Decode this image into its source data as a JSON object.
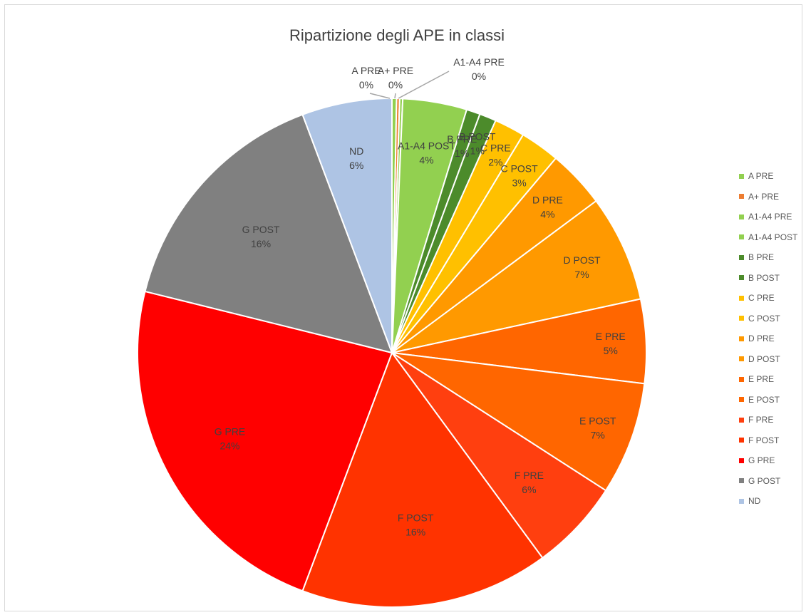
{
  "chart_data": {
    "type": "pie",
    "title": "Ripartizione degli APE in classi",
    "legend_position": "right",
    "slices": [
      {
        "name": "A PRE",
        "value": 0.3,
        "label": "0%",
        "color": "#92d050"
      },
      {
        "name": "A+ PRE",
        "value": 0.2,
        "label": "0%",
        "color": "#ed7d31"
      },
      {
        "name": "A1-A4 PRE",
        "value": 0.2,
        "label": "0%",
        "color": "#92d050"
      },
      {
        "name": "A1-A4 POST",
        "value": 4.2,
        "label": "4%",
        "color": "#92d050"
      },
      {
        "name": "B PRE",
        "value": 0.9,
        "label": "1%",
        "color": "#4c8b2b"
      },
      {
        "name": "B POST",
        "value": 1.1,
        "label": "1%",
        "color": "#4c8b2b"
      },
      {
        "name": "C PRE",
        "value": 2.0,
        "label": "2%",
        "color": "#ffc000"
      },
      {
        "name": "C POST",
        "value": 2.6,
        "label": "3%",
        "color": "#ffc000"
      },
      {
        "name": "D PRE",
        "value": 3.8,
        "label": "4%",
        "color": "#ff9900"
      },
      {
        "name": "D POST",
        "value": 7.0,
        "label": "7%",
        "color": "#ff9900"
      },
      {
        "name": "E PRE",
        "value": 5.5,
        "label": "5%",
        "color": "#ff6600"
      },
      {
        "name": "E POST",
        "value": 7.4,
        "label": "7%",
        "color": "#ff6600"
      },
      {
        "name": "F PRE",
        "value": 6.0,
        "label": "6%",
        "color": "#ff3f0f"
      },
      {
        "name": "F POST",
        "value": 16.3,
        "label": "16%",
        "color": "#ff3300"
      },
      {
        "name": "G PRE",
        "value": 23.9,
        "label": "24%",
        "color": "#ff0000"
      },
      {
        "name": "G POST",
        "value": 15.9,
        "label": "16%",
        "color": "#808080"
      },
      {
        "name": "ND",
        "value": 5.9,
        "label": "6%",
        "color": "#aec4e4"
      }
    ]
  }
}
